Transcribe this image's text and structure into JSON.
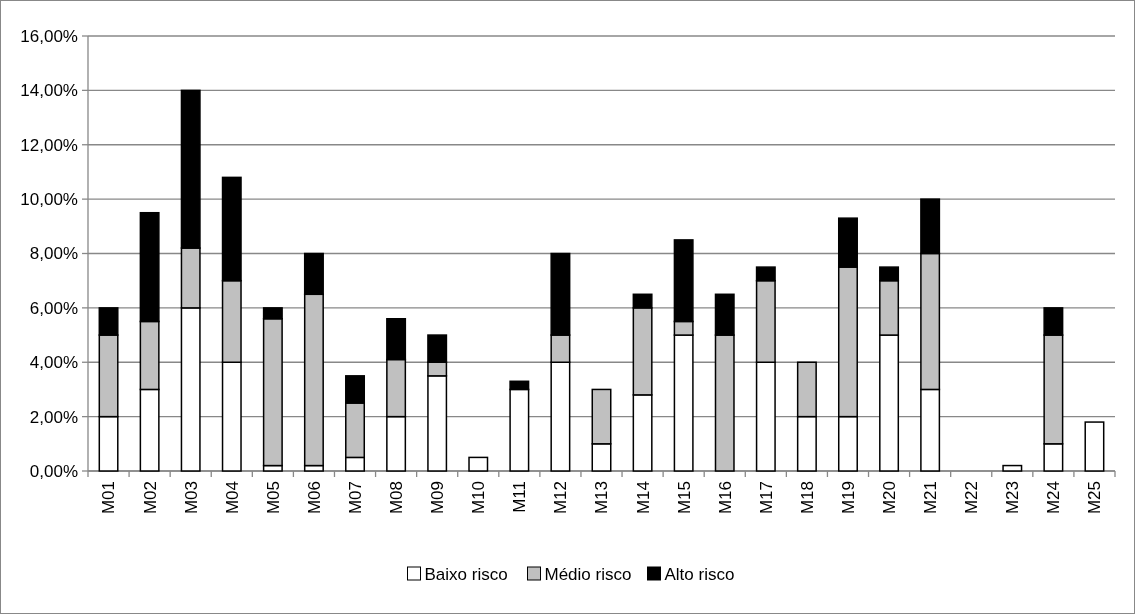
{
  "chart_data": {
    "type": "bar",
    "stacked": true,
    "categories": [
      "M01",
      "M02",
      "M03",
      "M04",
      "M05",
      "M06",
      "M07",
      "M08",
      "M09",
      "M10",
      "M11",
      "M12",
      "M13",
      "M14",
      "M15",
      "M16",
      "M17",
      "M18",
      "M19",
      "M20",
      "M21",
      "M22",
      "M23",
      "M24",
      "M25"
    ],
    "series": [
      {
        "name": "Baixo risco",
        "color": "#ffffff",
        "values": [
          2,
          3,
          6,
          4,
          0.2,
          0.2,
          0.5,
          2,
          3.5,
          0.5,
          3,
          4,
          1,
          2.8,
          5,
          0,
          4,
          2,
          2,
          5,
          3,
          0,
          0.2,
          1,
          1.8
        ]
      },
      {
        "name": "Médio risco",
        "color": "#c0c0c0",
        "values": [
          3,
          2.5,
          2.2,
          3,
          5.4,
          6.3,
          2,
          2.1,
          0.5,
          0,
          0,
          1,
          2,
          3.2,
          0.5,
          5,
          3,
          2,
          5.5,
          2,
          5,
          0,
          0,
          4,
          0
        ]
      },
      {
        "name": "Alto risco",
        "color": "#000000",
        "values": [
          1,
          4,
          5.8,
          3.8,
          0.4,
          1.5,
          1,
          1.5,
          1,
          0,
          0.3,
          3,
          0,
          0.5,
          3,
          1.5,
          0.5,
          0,
          1.8,
          0.5,
          2,
          0,
          0,
          1,
          0
        ]
      }
    ],
    "ylim": [
      0,
      16
    ],
    "yticks": [
      {
        "value": 0,
        "label": "0,00%"
      },
      {
        "value": 2,
        "label": "2,00%"
      },
      {
        "value": 4,
        "label": "4,00%"
      },
      {
        "value": 6,
        "label": "6,00%"
      },
      {
        "value": 8,
        "label": "8,00%"
      },
      {
        "value": 10,
        "label": "10,00%"
      },
      {
        "value": 12,
        "label": "12,00%"
      },
      {
        "value": 14,
        "label": "14,00%"
      },
      {
        "value": 16,
        "label": "16,00%"
      }
    ],
    "grid": "y",
    "legend": "bottom"
  }
}
